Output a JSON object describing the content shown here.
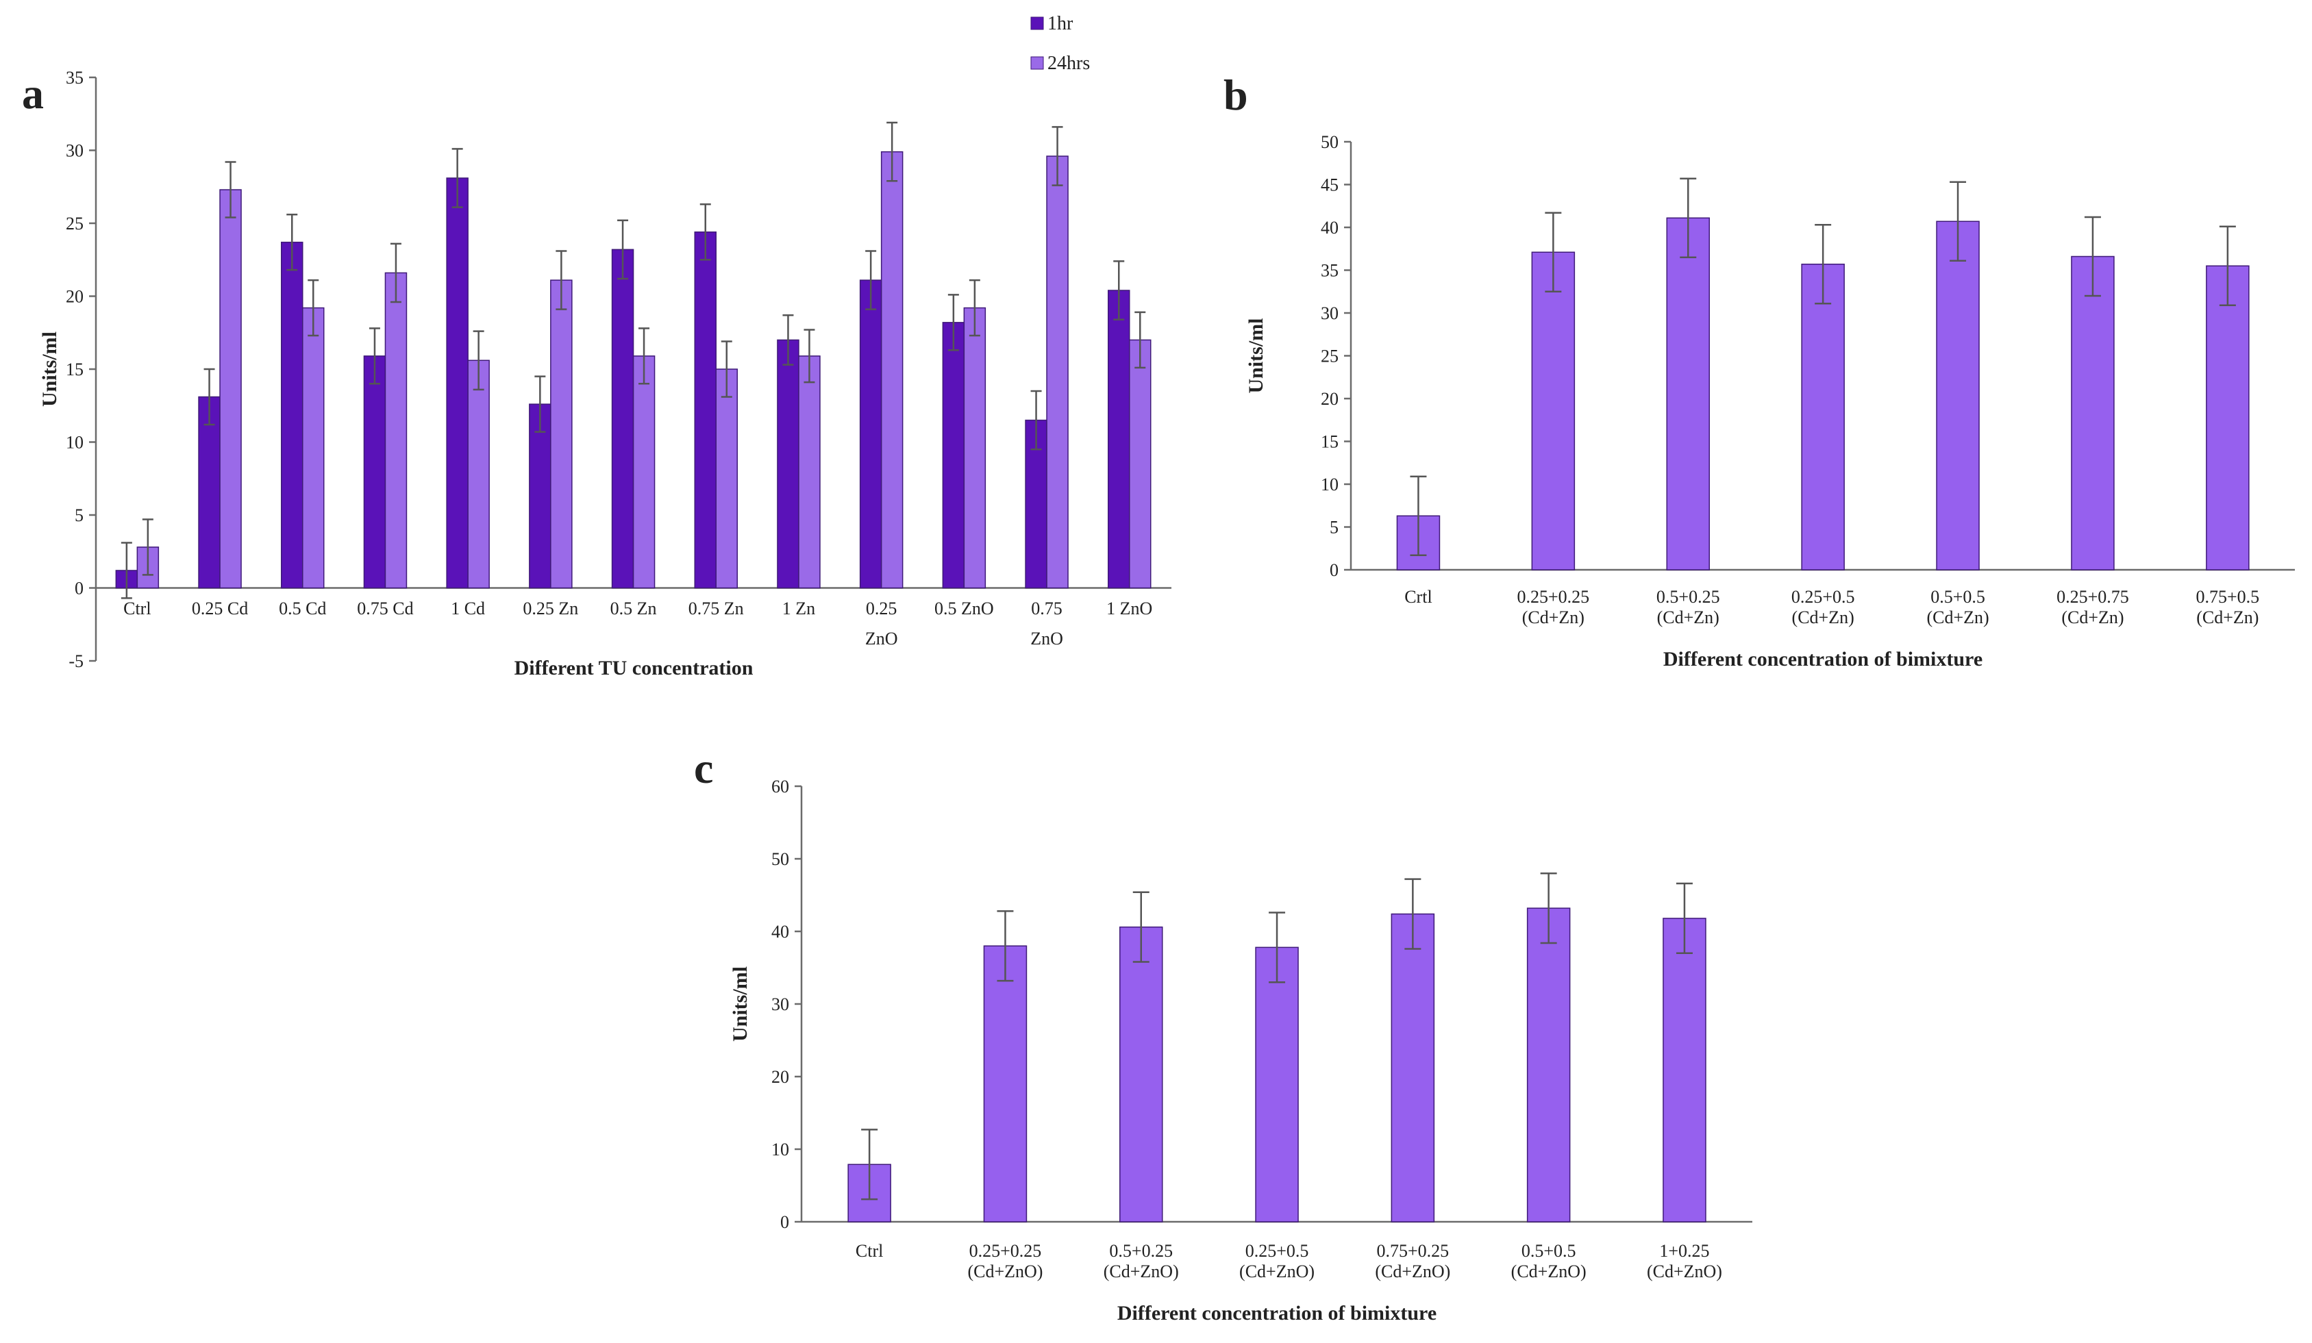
{
  "colors": {
    "dark": "#5a12b8",
    "light": "#9a6ae8",
    "single": "#9660ee",
    "edge": "#3f1a78"
  },
  "chart_data": [
    {
      "id": "a",
      "type": "bar",
      "panel_label": "a",
      "xlabel": "Different TU concentration",
      "ylabel": "Units/ml",
      "ylim": [
        -5,
        35
      ],
      "yticks": [
        -5,
        0,
        5,
        10,
        15,
        20,
        25,
        30,
        35
      ],
      "categories": [
        [
          "Ctrl"
        ],
        [
          "0.25 Cd"
        ],
        [
          "0.5 Cd"
        ],
        [
          "0.75 Cd"
        ],
        [
          "1 Cd"
        ],
        [
          "0.25 Zn"
        ],
        [
          "0.5 Zn"
        ],
        [
          "0.75 Zn"
        ],
        [
          "1 Zn"
        ],
        [
          "0.25",
          "ZnO"
        ],
        [
          "0.5 ZnO"
        ],
        [
          "0.75",
          "ZnO"
        ],
        [
          "1 ZnO"
        ]
      ],
      "series": [
        {
          "name": "1hr",
          "color_key": "dark",
          "values": [
            1.2,
            13.1,
            23.7,
            15.9,
            28.1,
            12.6,
            23.2,
            24.4,
            17.0,
            21.1,
            18.2,
            11.5,
            20.4
          ],
          "errors": [
            1.9,
            1.9,
            1.9,
            1.9,
            2.0,
            1.9,
            2.0,
            1.9,
            1.7,
            2.0,
            1.9,
            2.0,
            2.0
          ]
        },
        {
          "name": "24hrs",
          "color_key": "light",
          "values": [
            2.8,
            27.3,
            19.2,
            21.6,
            15.6,
            21.1,
            15.9,
            15.0,
            15.9,
            29.9,
            19.2,
            29.6,
            17.0
          ],
          "errors": [
            1.9,
            1.9,
            1.9,
            2.0,
            2.0,
            2.0,
            1.9,
            1.9,
            1.8,
            2.0,
            1.9,
            2.0,
            1.9
          ]
        }
      ]
    },
    {
      "id": "b",
      "type": "bar",
      "panel_label": "b",
      "xlabel": "Different concentration  of bimixture",
      "ylabel": "Units/ml",
      "ylim": [
        0,
        50
      ],
      "yticks": [
        0,
        5,
        10,
        15,
        20,
        25,
        30,
        35,
        40,
        45,
        50
      ],
      "categories": [
        [
          "Crtl"
        ],
        [
          "0.25+0.25",
          "(Cd+Zn)"
        ],
        [
          "0.5+0.25",
          "(Cd+Zn)"
        ],
        [
          "0.25+0.5",
          "(Cd+Zn)"
        ],
        [
          "0.5+0.5",
          "(Cd+Zn)"
        ],
        [
          "0.25+0.75",
          "(Cd+Zn)"
        ],
        [
          "0.75+0.5",
          "(Cd+Zn)"
        ]
      ],
      "series": [
        {
          "name": "Units/ml",
          "color_key": "single",
          "values": [
            6.3,
            37.1,
            41.1,
            35.7,
            40.7,
            36.6,
            35.5
          ],
          "errors": [
            4.6,
            4.6,
            4.6,
            4.6,
            4.6,
            4.6,
            4.6
          ]
        }
      ]
    },
    {
      "id": "c",
      "type": "bar",
      "panel_label": "c",
      "xlabel": "Different concentration  of bimixture",
      "ylabel": "Units/ml",
      "ylim": [
        0,
        60
      ],
      "yticks": [
        0,
        10,
        20,
        30,
        40,
        50,
        60
      ],
      "categories": [
        [
          "Ctrl"
        ],
        [
          "0.25+0.25",
          "(Cd+ZnO)"
        ],
        [
          "0.5+0.25",
          "(Cd+ZnO)"
        ],
        [
          "0.25+0.5",
          "(Cd+ZnO)"
        ],
        [
          "0.75+0.25",
          "(Cd+ZnO)"
        ],
        [
          "0.5+0.5",
          "(Cd+ZnO)"
        ],
        [
          "1+0.25",
          "(Cd+ZnO)"
        ]
      ],
      "series": [
        {
          "name": "Units/ml",
          "color_key": "single",
          "values": [
            7.9,
            38.0,
            40.6,
            37.8,
            42.4,
            43.2,
            41.8
          ],
          "errors": [
            4.8,
            4.8,
            4.8,
            4.8,
            4.8,
            4.8,
            4.8
          ]
        }
      ]
    }
  ]
}
